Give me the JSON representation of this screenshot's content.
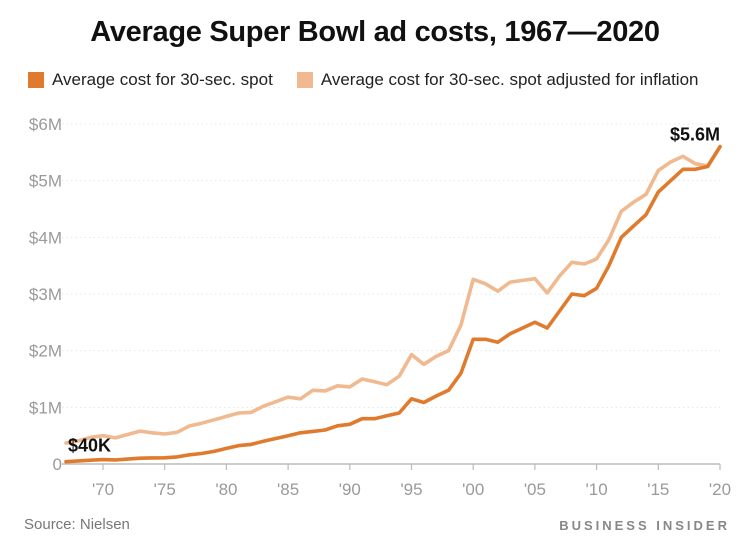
{
  "chart_data": {
    "type": "line",
    "title": "Average Super Bowl ad costs, 1967—2020",
    "source": "Source: Nielsen",
    "brand": "BUSINESS INSIDER",
    "colors": {
      "nominal": "#e07b2e",
      "inflation": "#f0b98f",
      "grid": "#e6e6e6",
      "axis": "#bbbbbb"
    },
    "ylim": [
      0,
      6000000
    ],
    "xlim": [
      1967,
      2020
    ],
    "y_ticks": [
      {
        "value": 0,
        "label": "0"
      },
      {
        "value": 1000000,
        "label": "$1M"
      },
      {
        "value": 2000000,
        "label": "$2M"
      },
      {
        "value": 3000000,
        "label": "$3M"
      },
      {
        "value": 4000000,
        "label": "$4M"
      },
      {
        "value": 5000000,
        "label": "$5M"
      },
      {
        "value": 6000000,
        "label": "$6M"
      }
    ],
    "x_ticks": [
      {
        "value": 1970,
        "label": "'70"
      },
      {
        "value": 1975,
        "label": "'75"
      },
      {
        "value": 1980,
        "label": "'80"
      },
      {
        "value": 1985,
        "label": "'85"
      },
      {
        "value": 1990,
        "label": "'90"
      },
      {
        "value": 1995,
        "label": "'95"
      },
      {
        "value": 2000,
        "label": "'00"
      },
      {
        "value": 2005,
        "label": "'05"
      },
      {
        "value": 2010,
        "label": "'10"
      },
      {
        "value": 2015,
        "label": "'15"
      },
      {
        "value": 2020,
        "label": "'20"
      }
    ],
    "annotations": [
      {
        "x": 1967,
        "y": 40000,
        "label": "$40K"
      },
      {
        "x": 2020,
        "y": 5600000,
        "label": "$5.6M"
      }
    ],
    "x": [
      1967,
      1968,
      1969,
      1970,
      1971,
      1972,
      1973,
      1974,
      1975,
      1976,
      1977,
      1978,
      1979,
      1980,
      1981,
      1982,
      1983,
      1984,
      1985,
      1986,
      1987,
      1988,
      1989,
      1990,
      1991,
      1992,
      1993,
      1994,
      1995,
      1996,
      1997,
      1998,
      1999,
      2000,
      2001,
      2002,
      2003,
      2004,
      2005,
      2006,
      2007,
      2008,
      2009,
      2010,
      2011,
      2012,
      2013,
      2014,
      2015,
      2016,
      2017,
      2018,
      2019,
      2020
    ],
    "series": [
      {
        "name": "Average cost for 30-sec. spot",
        "values": [
          40000,
          54000,
          67000,
          78000,
          72000,
          86000,
          103000,
          107000,
          110000,
          125000,
          162000,
          185000,
          222000,
          275000,
          324000,
          345000,
          400000,
          450000,
          500000,
          550000,
          575000,
          600000,
          675000,
          700000,
          800000,
          800000,
          850000,
          900000,
          1150000,
          1085000,
          1200000,
          1300000,
          1600000,
          2200000,
          2200000,
          2150000,
          2300000,
          2400000,
          2500000,
          2400000,
          2700000,
          3000000,
          2970000,
          3100000,
          3500000,
          4000000,
          4200000,
          4400000,
          4800000,
          5000000,
          5200000,
          5200000,
          5250000,
          5600000
        ]
      },
      {
        "name": "Average cost for 30-sec. spot adjusted for inflation",
        "values": [
          370000,
          410000,
          470000,
          500000,
          460000,
          520000,
          580000,
          550000,
          530000,
          560000,
          670000,
          720000,
          780000,
          840000,
          900000,
          910000,
          1020000,
          1100000,
          1180000,
          1150000,
          1300000,
          1290000,
          1380000,
          1360000,
          1500000,
          1450000,
          1400000,
          1550000,
          1930000,
          1760000,
          1900000,
          2000000,
          2450000,
          3260000,
          3180000,
          3050000,
          3210000,
          3240000,
          3270000,
          3020000,
          3320000,
          3560000,
          3530000,
          3620000,
          3960000,
          4460000,
          4620000,
          4760000,
          5180000,
          5330000,
          5430000,
          5300000,
          5260000,
          5600000
        ]
      }
    ]
  }
}
